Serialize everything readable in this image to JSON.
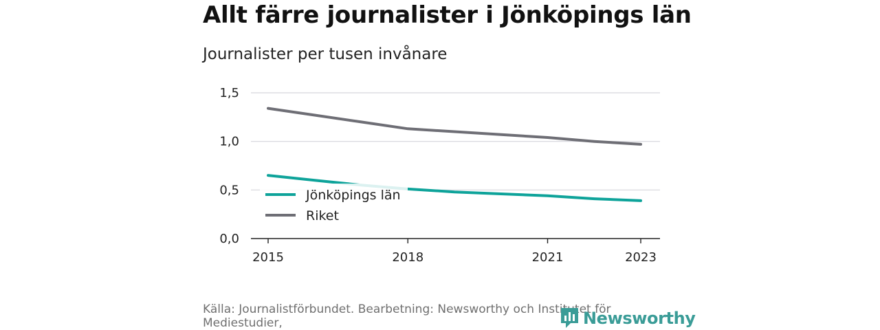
{
  "title": "Allt färre journalister i Jönköpings län",
  "subtitle": "Journalister per tusen invånare",
  "source": "Källa: Journalistförbundet. Bearbetning: Newsworthy och Institutet för Mediestudier,",
  "brand": {
    "name": "Newsworthy",
    "color": "#3a9c97",
    "icon": "newsworthy-logo-icon"
  },
  "chart_data": {
    "type": "line",
    "title": "Allt färre journalister i Jönköpings län",
    "subtitle": "Journalister per tusen invånare",
    "xlabel": "",
    "ylabel": "",
    "x_ticks": [
      2015,
      2018,
      2021,
      2023
    ],
    "x_range": [
      2015,
      2023
    ],
    "y_ticks": [
      "0,0",
      "0,5",
      "1,0",
      "1,5"
    ],
    "y_tick_values": [
      0,
      0.5,
      1.0,
      1.5
    ],
    "ylim": [
      0,
      1.5
    ],
    "grid": true,
    "legend_position": "bottom-left",
    "series": [
      {
        "name": "Jönköpings län",
        "color": "#0ea39a",
        "x": [
          2015,
          2016,
          2017,
          2018,
          2019,
          2020,
          2021,
          2022,
          2023
        ],
        "values": [
          0.65,
          0.6,
          0.55,
          0.51,
          0.48,
          0.46,
          0.44,
          0.41,
          0.39
        ]
      },
      {
        "name": "Riket",
        "color": "#6e6e75",
        "x": [
          2015,
          2016,
          2017,
          2018,
          2019,
          2020,
          2021,
          2022,
          2023
        ],
        "values": [
          1.34,
          1.27,
          1.2,
          1.13,
          1.1,
          1.07,
          1.04,
          1.0,
          0.97
        ]
      }
    ]
  }
}
